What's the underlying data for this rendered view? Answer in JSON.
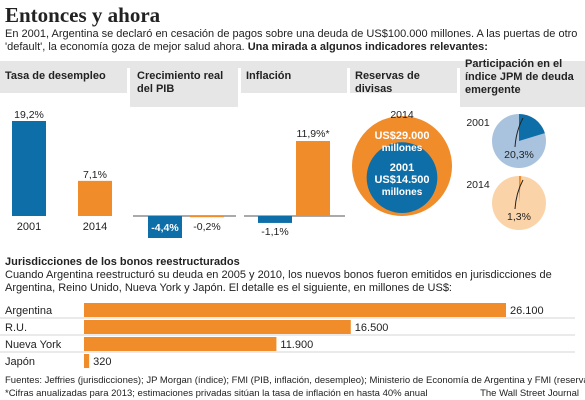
{
  "title": "Entonces y ahora",
  "intro": {
    "text": "En 2001, Argentina se declaró en cesación de pagos sobre una deuda de US$100.000 millones. A las puertas de otro 'default', la economía goza de mejor salud ahora. ",
    "bold": "Una mirada a algunos indicadores relevantes:"
  },
  "colors": {
    "blue": "#0e6fa8",
    "orange": "#f08c2a",
    "band": "#e6e6e6",
    "light_orange": "#fbd3a8",
    "light_blue": "#a9c3de"
  },
  "chart_data": [
    {
      "type": "bar",
      "title": "Tasa de desempleo",
      "categories": [
        "2001",
        "2014"
      ],
      "values": [
        19.2,
        7.1
      ],
      "value_labels": [
        "19,2%",
        "7,1%"
      ]
    },
    {
      "type": "bar",
      "title": "Crecimiento real del PIB",
      "categories": [
        "2001",
        "2014"
      ],
      "values": [
        -4.4,
        -0.2
      ],
      "value_labels": [
        "-4,4%",
        "-0,2%"
      ]
    },
    {
      "type": "bar",
      "title": "Inflación",
      "categories": [
        "2001",
        "2014"
      ],
      "values": [
        -1.1,
        11.9
      ],
      "value_labels": [
        "-1,1%",
        "11,9%*"
      ]
    },
    {
      "type": "area",
      "title": "Reservas de divisas",
      "year_label": "2014",
      "categories": [
        "2014",
        "2001"
      ],
      "values": [
        29000,
        14500
      ],
      "value_labels": [
        "US$29.000 millones",
        "US$14.500 millones"
      ]
    },
    {
      "type": "pie",
      "title": "Participación en el índice JPM de deuda emergente",
      "categories": [
        "2001",
        "2014"
      ],
      "values": [
        20.3,
        1.3
      ],
      "value_labels": [
        "20,3%",
        "1,3%"
      ]
    },
    {
      "type": "bar",
      "title": "Jurisdicciones de los bonos reestructurados",
      "categories": [
        "Argentina",
        "R.U.",
        "Nueva York",
        "Japón"
      ],
      "values": [
        26100,
        16500,
        11900,
        320
      ],
      "value_labels": [
        "26.100",
        "16.500",
        "11.900",
        "320"
      ]
    }
  ],
  "section2": {
    "title": "Jurisdicciones de los bonos reestructurados",
    "text": "Cuando Argentina reestructuró su deuda en 2005 y 2010, los nuevos bonos fueron emitidos en jurisdicciones de Argentina, Reino Unido, Nueva York y Japón. El detalle es el siguiente, en millones de US$:"
  },
  "footer": {
    "sources": "Fuentes: Jeffries (jurisdicciones); JP Morgan (índice); FMI (PIB, inflación, desempleo); Ministerio de Economía de Argentina y FMI (reservas)",
    "note": "*Cifras anualizadas para 2013; estimaciones privadas sitúan la tasa de inflación en hasta 40% anual",
    "credit": "The Wall Street Journal"
  }
}
